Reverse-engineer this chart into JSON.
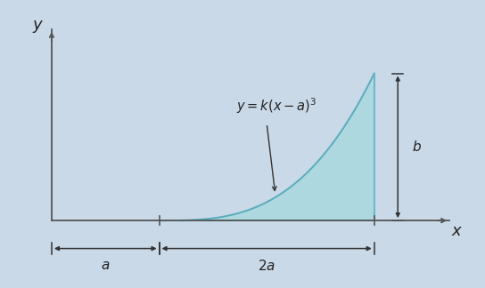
{
  "background_color": "#c9d9e8",
  "shaded_color": "#aed8e0",
  "shaded_edge_color": "#6ab8c8",
  "curve_color": "#5aacbc",
  "axes_color": "#555555",
  "annotation_color": "#222222",
  "arrow_color": "#333333",
  "formula_text": "$y = k(x-a)^3$",
  "x_label": "$x$",
  "y_label": "$y$",
  "a_label": "$a$",
  "two_a_label": "$2a$",
  "b_label": "$b$",
  "a_val": 1.0,
  "b_val": 1.0,
  "figsize": [
    5.44,
    3.24
  ],
  "dpi": 100
}
